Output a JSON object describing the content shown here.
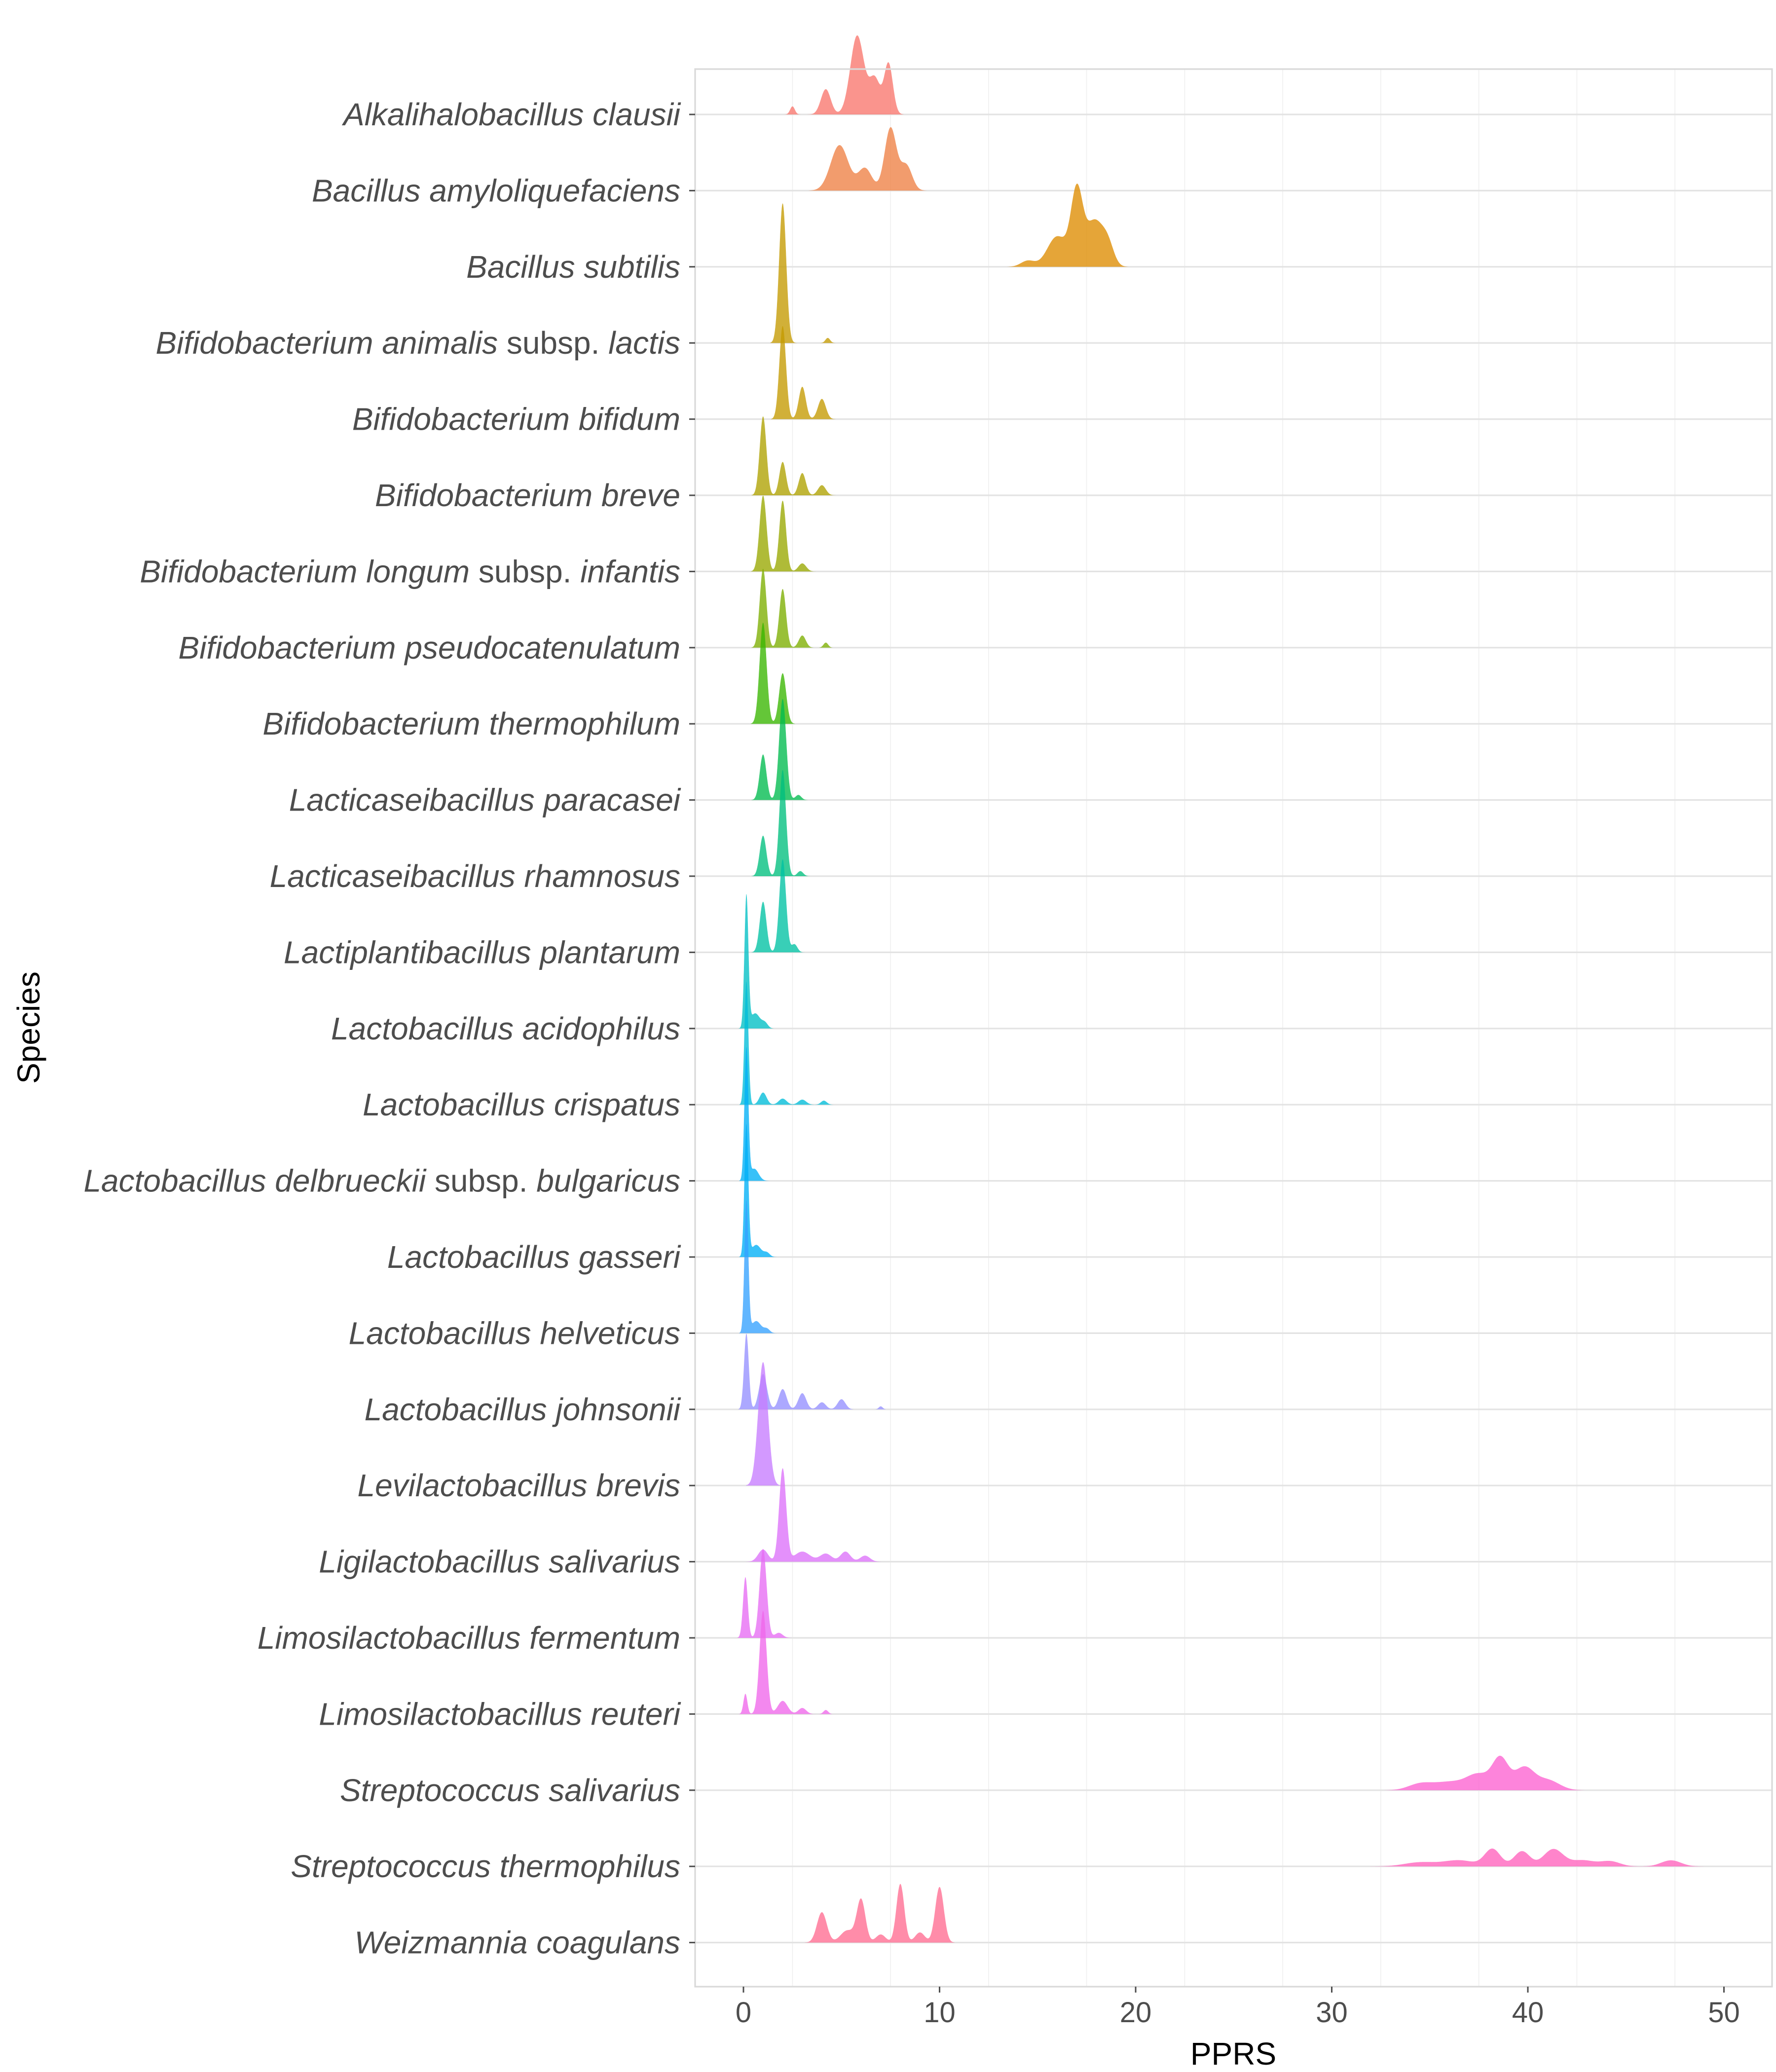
{
  "chart_data": {
    "type": "ridgeline",
    "title": "",
    "xlabel": "PPRS",
    "ylabel": "Species",
    "xlim": [
      -2.5,
      52.5
    ],
    "x_ticks": [
      0,
      10,
      20,
      30,
      40,
      50
    ],
    "grid": true,
    "legend": "none",
    "series": [
      {
        "name": "Alkalihalobacillus clausii",
        "parts": [
          {
            "t": "Alkalihalobacillus clausii",
            "i": true
          }
        ],
        "color": "#F8766D",
        "peaks": [
          [
            2.5,
            0.08,
            0.12
          ],
          [
            4.2,
            0.25,
            0.25
          ],
          [
            5.8,
            0.78,
            0.35
          ],
          [
            6.7,
            0.35,
            0.28
          ],
          [
            7.4,
            0.5,
            0.22
          ]
        ]
      },
      {
        "name": "Bacillus amyloliquefaciens",
        "parts": [
          {
            "t": "Bacillus amyloliquefaciens",
            "i": true
          }
        ],
        "color": "#EE8044",
        "peaks": [
          [
            4.9,
            0.45,
            0.45
          ],
          [
            6.2,
            0.22,
            0.35
          ],
          [
            7.5,
            0.62,
            0.3
          ],
          [
            8.3,
            0.25,
            0.3
          ]
        ]
      },
      {
        "name": "Bacillus subtilis",
        "parts": [
          {
            "t": "Bacillus subtilis",
            "i": true
          }
        ],
        "color": "#DE8C00",
        "peaks": [
          [
            14.5,
            0.06,
            0.35
          ],
          [
            16.0,
            0.3,
            0.5
          ],
          [
            17.0,
            0.72,
            0.3
          ],
          [
            17.9,
            0.45,
            0.45
          ],
          [
            18.6,
            0.18,
            0.3
          ]
        ]
      },
      {
        "name": "Bifidobacterium animalis subsp. lactis",
        "parts": [
          {
            "t": "Bifidobacterium animalis",
            "i": true
          },
          {
            "t": " subsp. ",
            "i": false
          },
          {
            "t": "lactis",
            "i": true
          }
        ],
        "color": "#C49A00",
        "peaks": [
          [
            2.0,
            1.38,
            0.18
          ],
          [
            4.3,
            0.05,
            0.12
          ]
        ]
      },
      {
        "name": "Bifidobacterium bifidum",
        "parts": [
          {
            "t": "Bifidobacterium bifidum",
            "i": true
          }
        ],
        "color": "#C49A00",
        "peaks": [
          [
            2.0,
            0.92,
            0.17
          ],
          [
            3.0,
            0.32,
            0.18
          ],
          [
            4.0,
            0.2,
            0.2
          ]
        ]
      },
      {
        "name": "Bifidobacterium breve",
        "parts": [
          {
            "t": "Bifidobacterium breve",
            "i": true
          }
        ],
        "color": "#AEA200",
        "peaks": [
          [
            1.0,
            0.78,
            0.17
          ],
          [
            2.0,
            0.33,
            0.17
          ],
          [
            3.0,
            0.22,
            0.18
          ],
          [
            4.0,
            0.1,
            0.2
          ]
        ]
      },
      {
        "name": "Bifidobacterium longum subsp. infantis",
        "parts": [
          {
            "t": "Bifidobacterium longum",
            "i": true
          },
          {
            "t": " subsp. ",
            "i": false
          },
          {
            "t": "infantis",
            "i": true
          }
        ],
        "color": "#99A800",
        "peaks": [
          [
            1.0,
            0.75,
            0.18
          ],
          [
            2.0,
            0.7,
            0.17
          ],
          [
            3.0,
            0.08,
            0.2
          ]
        ]
      },
      {
        "name": "Bifidobacterium pseudocatenulatum",
        "parts": [
          {
            "t": "Bifidobacterium pseudocatenulatum",
            "i": true
          }
        ],
        "color": "#7CAE00",
        "peaks": [
          [
            1.0,
            0.78,
            0.17
          ],
          [
            2.0,
            0.58,
            0.17
          ],
          [
            3.0,
            0.12,
            0.18
          ],
          [
            4.2,
            0.05,
            0.12
          ]
        ]
      },
      {
        "name": "Bifidobacterium thermophilum",
        "parts": [
          {
            "t": "Bifidobacterium thermophilum",
            "i": true
          }
        ],
        "color": "#39B600",
        "peaks": [
          [
            1.0,
            1.0,
            0.18
          ],
          [
            2.0,
            0.5,
            0.18
          ]
        ]
      },
      {
        "name": "Lacticaseibacillus paracasei",
        "parts": [
          {
            "t": "Lacticaseibacillus paracasei",
            "i": true
          }
        ],
        "color": "#00BB4E",
        "peaks": [
          [
            1.0,
            0.45,
            0.17
          ],
          [
            2.0,
            1.0,
            0.18
          ],
          [
            2.8,
            0.05,
            0.15
          ]
        ]
      },
      {
        "name": "Lacticaseibacillus rhamnosus",
        "parts": [
          {
            "t": "Lacticaseibacillus rhamnosus",
            "i": true
          }
        ],
        "color": "#00BF7D",
        "peaks": [
          [
            1.0,
            0.4,
            0.17
          ],
          [
            2.0,
            1.05,
            0.17
          ],
          [
            2.9,
            0.05,
            0.15
          ]
        ]
      },
      {
        "name": "Lactiplantibacillus plantarum",
        "parts": [
          {
            "t": "Lactiplantibacillus plantarum",
            "i": true
          }
        ],
        "color": "#00C1A3",
        "peaks": [
          [
            1.0,
            0.5,
            0.17
          ],
          [
            2.0,
            0.92,
            0.17
          ],
          [
            2.6,
            0.08,
            0.15
          ]
        ]
      },
      {
        "name": "Lactobacillus acidophilus",
        "parts": [
          {
            "t": "Lactobacillus acidophilus",
            "i": true
          }
        ],
        "color": "#00BFC4",
        "peaks": [
          [
            0.15,
            1.3,
            0.1
          ],
          [
            0.6,
            0.15,
            0.25
          ],
          [
            1.1,
            0.05,
            0.15
          ]
        ]
      },
      {
        "name": "Lactobacillus crispatus",
        "parts": [
          {
            "t": "Lactobacillus crispatus",
            "i": true
          }
        ],
        "color": "#00BCD8",
        "peaks": [
          [
            0.15,
            1.22,
            0.1
          ],
          [
            1.0,
            0.12,
            0.18
          ],
          [
            2.0,
            0.06,
            0.2
          ],
          [
            3.0,
            0.05,
            0.2
          ],
          [
            4.1,
            0.04,
            0.15
          ]
        ]
      },
      {
        "name": "Lactobacillus delbrueckii subsp. bulgaricus",
        "parts": [
          {
            "t": "Lactobacillus delbrueckii",
            "i": true
          },
          {
            "t": " subsp. ",
            "i": false
          },
          {
            "t": "bulgaricus",
            "i": true
          }
        ],
        "color": "#00B0F6",
        "peaks": [
          [
            0.15,
            1.3,
            0.1
          ],
          [
            0.55,
            0.12,
            0.22
          ]
        ]
      },
      {
        "name": "Lactobacillus gasseri",
        "parts": [
          {
            "t": "Lactobacillus gasseri",
            "i": true
          }
        ],
        "color": "#00B0F6",
        "peaks": [
          [
            0.15,
            1.3,
            0.1
          ],
          [
            0.65,
            0.12,
            0.25
          ],
          [
            1.2,
            0.04,
            0.15
          ]
        ]
      },
      {
        "name": "Lactobacillus helveticus",
        "parts": [
          {
            "t": "Lactobacillus helveticus",
            "i": true
          }
        ],
        "color": "#35A2FF",
        "peaks": [
          [
            0.15,
            1.3,
            0.1
          ],
          [
            0.65,
            0.12,
            0.25
          ],
          [
            1.2,
            0.04,
            0.15
          ]
        ]
      },
      {
        "name": "Lactobacillus johnsonii",
        "parts": [
          {
            "t": "Lactobacillus johnsonii",
            "i": true
          }
        ],
        "color": "#9590FF",
        "peaks": [
          [
            0.15,
            0.75,
            0.12
          ],
          [
            1.0,
            0.35,
            0.2
          ],
          [
            2.0,
            0.2,
            0.2
          ],
          [
            3.0,
            0.16,
            0.2
          ],
          [
            4.0,
            0.07,
            0.2
          ],
          [
            5.0,
            0.1,
            0.2
          ],
          [
            7.0,
            0.03,
            0.1
          ]
        ]
      },
      {
        "name": "Levilactobacillus brevis",
        "parts": [
          {
            "t": "Levilactobacillus brevis",
            "i": true
          }
        ],
        "color": "#C77CFF",
        "peaks": [
          [
            1.0,
            1.22,
            0.25
          ]
        ]
      },
      {
        "name": "Ligilactobacillus salivarius",
        "parts": [
          {
            "t": "Ligilactobacillus salivarius",
            "i": true
          }
        ],
        "color": "#DC71FA",
        "peaks": [
          [
            1.0,
            0.12,
            0.25
          ],
          [
            2.0,
            0.92,
            0.18
          ],
          [
            3.0,
            0.1,
            0.4
          ],
          [
            4.2,
            0.08,
            0.3
          ],
          [
            5.2,
            0.1,
            0.25
          ],
          [
            6.2,
            0.06,
            0.25
          ]
        ]
      },
      {
        "name": "Limosilactobacillus fermentum",
        "parts": [
          {
            "t": "Limosilactobacillus fermentum",
            "i": true
          }
        ],
        "color": "#E76BF3",
        "peaks": [
          [
            0.1,
            0.6,
            0.12
          ],
          [
            1.0,
            0.88,
            0.18
          ],
          [
            1.8,
            0.05,
            0.2
          ]
        ]
      },
      {
        "name": "Limosilactobacillus reuteri",
        "parts": [
          {
            "t": "Limosilactobacillus reuteri",
            "i": true
          }
        ],
        "color": "#EF67EB",
        "peaks": [
          [
            0.1,
            0.2,
            0.1
          ],
          [
            1.0,
            1.02,
            0.18
          ],
          [
            2.0,
            0.13,
            0.25
          ],
          [
            3.0,
            0.06,
            0.2
          ],
          [
            4.2,
            0.04,
            0.12
          ]
        ]
      },
      {
        "name": "Streptococcus salivarius",
        "parts": [
          {
            "t": "Streptococcus salivarius",
            "i": true
          }
        ],
        "color": "#FD61D1",
        "peaks": [
          [
            34.5,
            0.06,
            0.6
          ],
          [
            36.0,
            0.08,
            0.8
          ],
          [
            37.5,
            0.15,
            0.6
          ],
          [
            38.6,
            0.3,
            0.4
          ],
          [
            39.8,
            0.22,
            0.5
          ],
          [
            41.0,
            0.1,
            0.6
          ]
        ]
      },
      {
        "name": "Streptococcus thermophilus",
        "parts": [
          {
            "t": "Streptococcus thermophilus",
            "i": true
          }
        ],
        "color": "#FF62BC",
        "peaks": [
          [
            34.5,
            0.04,
            0.8
          ],
          [
            36.5,
            0.06,
            0.8
          ],
          [
            38.2,
            0.17,
            0.4
          ],
          [
            39.7,
            0.15,
            0.4
          ],
          [
            41.3,
            0.17,
            0.5
          ],
          [
            42.8,
            0.06,
            0.6
          ],
          [
            44.2,
            0.05,
            0.5
          ],
          [
            47.3,
            0.06,
            0.5
          ]
        ]
      },
      {
        "name": "Weizmannia coagulans",
        "parts": [
          {
            "t": "Weizmannia coagulans",
            "i": true
          }
        ],
        "color": "#FF6C91",
        "peaks": [
          [
            4.0,
            0.3,
            0.25
          ],
          [
            5.3,
            0.12,
            0.35
          ],
          [
            6.0,
            0.42,
            0.22
          ],
          [
            7.0,
            0.08,
            0.25
          ],
          [
            8.0,
            0.58,
            0.2
          ],
          [
            9.0,
            0.1,
            0.25
          ],
          [
            10.0,
            0.55,
            0.22
          ]
        ]
      }
    ]
  }
}
